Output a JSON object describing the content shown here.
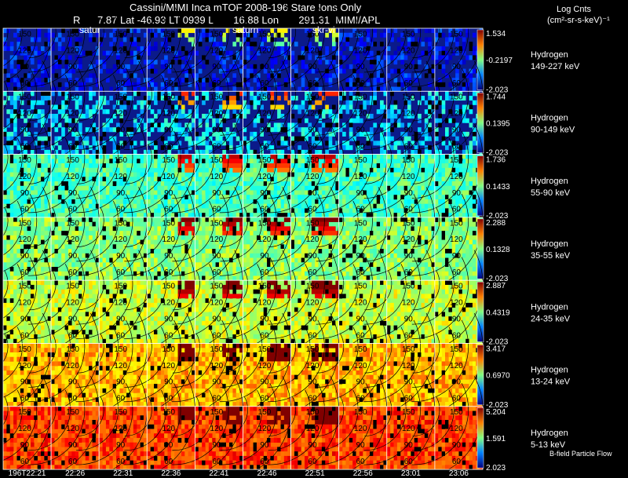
{
  "header": {
    "title": "Cassini/MIMI Inca mTOF  2008-196   Stare   Ions Only",
    "line2": "R      7.87 Lat -46.93 LT 0939 L       16.88 Lon       291.31  MIMI/APL",
    "units_title": "Log Cnts",
    "units_sub": "(cm²-sr-s-keV)⁻¹"
  },
  "chart_data": {
    "type": "heatmap",
    "title": "Cassini/MIMI Inca mTOF 2008-196 Stare Ions Only",
    "time_labels": [
      "196T22:21",
      "22:26",
      "22:31",
      "22:36",
      "22:41",
      "22:46",
      "22:51",
      "22:56",
      "23:01",
      "23:06"
    ],
    "contour_labels": [
      "150",
      "120",
      "90",
      "60"
    ],
    "marker_labels": [
      "satur",
      "saturn",
      "skr-vi"
    ],
    "species": "Hydrogen",
    "rows": [
      {
        "energy": "149-227 keV",
        "max": "1.534",
        "mid": "-0.2197",
        "min": "-2.023"
      },
      {
        "energy": "90-149 keV",
        "max": "1.744",
        "mid": "0.1395",
        "min": "-2.023"
      },
      {
        "energy": "55-90 keV",
        "max": "1.736",
        "mid": "0.1433",
        "min": "-2.023"
      },
      {
        "energy": "35-55 keV",
        "max": "2.288",
        "mid": "0.1328",
        "min": "-2.023"
      },
      {
        "energy": "24-35 keV",
        "max": "2.887",
        "mid": "0.4319",
        "min": "-2.023"
      },
      {
        "energy": "13-24 keV",
        "max": "3.417",
        "mid": "0.6970",
        "min": "-2.023"
      },
      {
        "energy": "5-13 keV",
        "max": "5.204",
        "mid": "1.591",
        "min": "2.023"
      }
    ],
    "levels": [
      0.15,
      0.35,
      0.45,
      0.52,
      0.58,
      0.7,
      0.82
    ],
    "footer_note": "B-field Particle Flow"
  }
}
